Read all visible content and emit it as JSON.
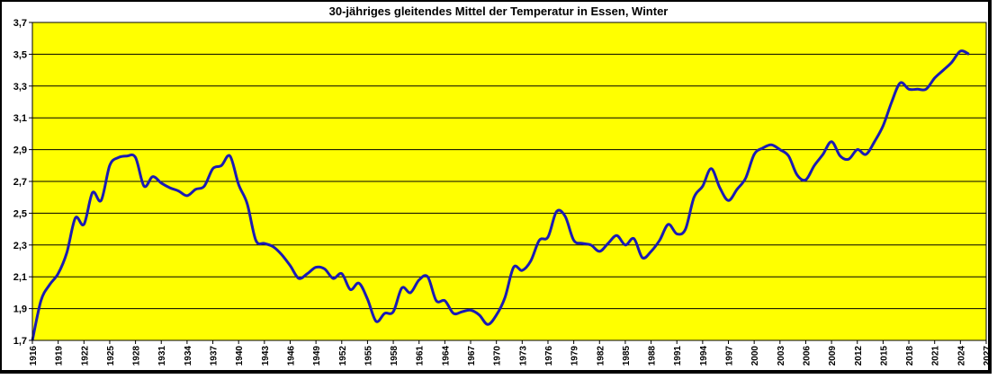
{
  "chart_data": {
    "type": "line",
    "title": "30-jähriges gleitendes Mittel der Temperatur in Essen,  Winter",
    "xlabel": "",
    "ylabel": "",
    "xlim": [
      1916,
      2027
    ],
    "ylim": [
      1.7,
      3.7
    ],
    "x_ticks": [
      1916,
      1919,
      1922,
      1925,
      1928,
      1931,
      1934,
      1937,
      1940,
      1943,
      1946,
      1949,
      1952,
      1955,
      1958,
      1961,
      1964,
      1967,
      1970,
      1973,
      1976,
      1979,
      1982,
      1985,
      1988,
      1991,
      1994,
      1997,
      2000,
      2003,
      2006,
      2009,
      2012,
      2015,
      2018,
      2021,
      2024,
      2027
    ],
    "y_ticks": [
      1.7,
      1.9,
      2.1,
      2.3,
      2.5,
      2.7,
      2.9,
      3.1,
      3.3,
      3.5,
      3.7
    ],
    "y_tick_labels": [
      "1,7",
      "1,9",
      "2,1",
      "2,3",
      "2,5",
      "2,7",
      "2,9",
      "3,1",
      "3,3",
      "3,5",
      "3,7"
    ],
    "grid": true,
    "colors": {
      "background": "#ffff00",
      "line": "#1a1ab4",
      "grid": "#000000"
    },
    "series": [
      {
        "x": [
          1916,
          1917,
          1918,
          1919,
          1920,
          1921,
          1922,
          1923,
          1924,
          1925,
          1926,
          1927,
          1928,
          1929,
          1930,
          1931,
          1932,
          1933,
          1934,
          1935,
          1936,
          1937,
          1938,
          1939,
          1940,
          1941,
          1942,
          1943,
          1944,
          1945,
          1946,
          1947,
          1948,
          1949,
          1950,
          1951,
          1952,
          1953,
          1954,
          1955,
          1956,
          1957,
          1958,
          1959,
          1960,
          1961,
          1962,
          1963,
          1964,
          1965,
          1966,
          1967,
          1968,
          1969,
          1970,
          1971,
          1972,
          1973,
          1974,
          1975,
          1976,
          1977,
          1978,
          1979,
          1980,
          1981,
          1982,
          1983,
          1984,
          1985,
          1986,
          1987,
          1988,
          1989,
          1990,
          1991,
          1992,
          1993,
          1994,
          1995,
          1996,
          1997,
          1998,
          1999,
          2000,
          2001,
          2002,
          2003,
          2004,
          2005,
          2006,
          2007,
          2008,
          2009,
          2010,
          2011,
          2012,
          2013,
          2014,
          2015,
          2016,
          2017,
          2018,
          2019,
          2020,
          2021,
          2022,
          2023,
          2024,
          2025
        ],
        "values": [
          1.7,
          1.95,
          2.05,
          2.12,
          2.25,
          2.47,
          2.43,
          2.63,
          2.58,
          2.8,
          2.85,
          2.86,
          2.85,
          2.67,
          2.73,
          2.69,
          2.66,
          2.64,
          2.61,
          2.65,
          2.67,
          2.78,
          2.8,
          2.86,
          2.68,
          2.56,
          2.33,
          2.31,
          2.29,
          2.24,
          2.17,
          2.09,
          2.12,
          2.16,
          2.15,
          2.09,
          2.12,
          2.02,
          2.06,
          1.96,
          1.82,
          1.87,
          1.88,
          2.03,
          2.0,
          2.08,
          2.1,
          1.95,
          1.95,
          1.87,
          1.88,
          1.89,
          1.86,
          1.8,
          1.86,
          1.97,
          2.16,
          2.14,
          2.2,
          2.33,
          2.35,
          2.51,
          2.48,
          2.33,
          2.31,
          2.3,
          2.26,
          2.31,
          2.36,
          2.3,
          2.34,
          2.22,
          2.26,
          2.33,
          2.43,
          2.37,
          2.4,
          2.6,
          2.67,
          2.78,
          2.66,
          2.58,
          2.65,
          2.72,
          2.87,
          2.91,
          2.93,
          2.9,
          2.86,
          2.74,
          2.71,
          2.8,
          2.87,
          2.95,
          2.86,
          2.84,
          2.9,
          2.87,
          2.95,
          3.05,
          3.2,
          3.32,
          3.28,
          3.28,
          3.28,
          3.35,
          3.4,
          3.45,
          3.52,
          3.5
        ]
      }
    ]
  }
}
